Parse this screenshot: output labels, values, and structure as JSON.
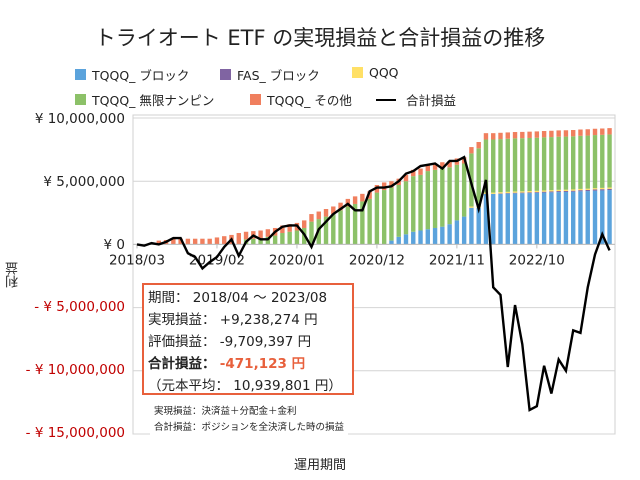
{
  "chart_data": {
    "type": "bar",
    "stacked": true,
    "title": "トライオート ETF の実現損益と合計損益の推移",
    "xlabel": "運用期間",
    "ylabel": "利益",
    "ylim": [
      -15000000,
      10000000
    ],
    "unit": 1000000,
    "y_ticks": [
      10000000,
      5000000,
      0,
      -5000000,
      -10000000,
      -15000000
    ],
    "y_tick_labels": [
      "¥ 10,000,000",
      "¥ 5,000,000",
      "¥ 0",
      "- ¥ 5,000,000",
      "- ¥ 10,000,000",
      "- ¥ 15,000,000"
    ],
    "x_tick_labels": [
      "2018/03",
      "2019/02",
      "2020/01",
      "2020/12",
      "2021/11",
      "2022/10"
    ],
    "grid": true,
    "legend_position": "top",
    "categories": [
      "2018/03",
      "2018/04",
      "2018/05",
      "2018/06",
      "2018/07",
      "2018/08",
      "2018/09",
      "2018/10",
      "2018/11",
      "2018/12",
      "2019/01",
      "2019/02",
      "2019/03",
      "2019/04",
      "2019/05",
      "2019/06",
      "2019/07",
      "2019/08",
      "2019/09",
      "2019/10",
      "2019/11",
      "2019/12",
      "2020/01",
      "2020/02",
      "2020/03",
      "2020/04",
      "2020/05",
      "2020/06",
      "2020/07",
      "2020/08",
      "2020/09",
      "2020/10",
      "2020/11",
      "2020/12",
      "2021/01",
      "2021/02",
      "2021/03",
      "2021/04",
      "2021/05",
      "2021/06",
      "2021/07",
      "2021/08",
      "2021/09",
      "2021/10",
      "2021/11",
      "2021/12",
      "2022/01",
      "2022/02",
      "2022/03",
      "2022/04",
      "2022/05",
      "2022/06",
      "2022/07",
      "2022/08",
      "2022/09",
      "2022/10",
      "2022/11",
      "2022/12",
      "2023/01",
      "2023/02",
      "2023/03",
      "2023/04",
      "2023/05",
      "2023/06",
      "2023/07",
      "2023/08"
    ],
    "series": [
      {
        "name": "TQQQ_ ブロック",
        "type": "bar",
        "color": "#5ba3dc",
        "values": [
          0,
          0,
          0,
          0,
          0,
          0,
          0,
          0,
          0,
          0,
          0,
          0,
          0,
          0,
          0,
          0,
          0,
          0,
          0,
          0,
          0,
          0,
          0,
          0,
          0,
          0,
          0,
          0,
          0,
          0,
          0,
          0,
          0,
          0,
          0,
          0.3,
          0.6,
          0.8,
          1.0,
          1.1,
          1.2,
          1.3,
          1.4,
          1.6,
          1.9,
          2.2,
          2.9,
          2.9,
          4.0,
          4.0,
          4.0,
          4.02,
          4.04,
          4.05,
          4.06,
          4.08,
          4.1,
          4.12,
          4.14,
          4.15,
          4.17,
          4.2,
          4.22,
          4.25,
          4.27,
          4.3
        ]
      },
      {
        "name": "FAS_ ブロック",
        "type": "bar",
        "color": "#8064a2",
        "values": [
          0,
          0,
          0,
          0,
          0,
          0,
          0,
          0,
          0,
          0,
          0,
          0,
          0,
          0,
          0,
          0,
          0,
          0,
          0,
          0,
          0,
          0,
          0,
          0,
          0,
          0,
          0,
          0,
          0,
          0,
          0,
          0,
          0,
          0,
          0,
          0,
          0,
          0,
          0,
          0,
          0,
          0,
          0,
          0,
          0,
          0,
          0,
          0,
          0,
          0,
          0.03,
          0.04,
          0.05,
          0.05,
          0.06,
          0.06,
          0.07,
          0.07,
          0.08,
          0.08,
          0.08,
          0.09,
          0.09,
          0.1,
          0.1,
          0.1
        ]
      },
      {
        "name": "QQQ",
        "type": "bar",
        "color": "#ffe066",
        "values": [
          0,
          0,
          0,
          0,
          0,
          0,
          0,
          0,
          0,
          0,
          0,
          0,
          0,
          0,
          0,
          0,
          0,
          0,
          0,
          0,
          0,
          0,
          0,
          0,
          0,
          0,
          0,
          0,
          0,
          0,
          0,
          0,
          0,
          0,
          0,
          0,
          0,
          0,
          0,
          0,
          0,
          0,
          0,
          0,
          0,
          0,
          0.1,
          0.1,
          0.1,
          0.1,
          0.1,
          0.1,
          0.1,
          0.1,
          0.1,
          0.1,
          0.1,
          0.1,
          0.1,
          0.1,
          0.1,
          0.1,
          0.1,
          0.1,
          0.1,
          0.1
        ]
      },
      {
        "name": "TQQQ_ 無限ナンピン",
        "type": "bar",
        "color": "#8cc168",
        "values": [
          0,
          0,
          0,
          0,
          0,
          0,
          0,
          0,
          0,
          0,
          0,
          0,
          0,
          0,
          0,
          0.4,
          0.45,
          0.5,
          0.6,
          0.7,
          0.9,
          1.0,
          1.1,
          1.3,
          1.8,
          2.0,
          2.2,
          2.4,
          2.7,
          3.0,
          3.2,
          3.4,
          3.6,
          4.1,
          4.3,
          4.2,
          4.1,
          4.2,
          4.4,
          4.4,
          4.6,
          4.6,
          4.6,
          4.5,
          4.4,
          4.2,
          4.2,
          4.6,
          4.2,
          4.2,
          4.2,
          4.2,
          4.2,
          4.2,
          4.2,
          4.2,
          4.2,
          4.2,
          4.2,
          4.2,
          4.2,
          4.2,
          4.2,
          4.2,
          4.2,
          4.2
        ]
      },
      {
        "name": "TQQQ_ その他",
        "type": "bar",
        "color": "#f07f5e",
        "values": [
          0,
          0,
          0,
          0.3,
          0.35,
          0.45,
          0.45,
          0.45,
          0.45,
          0.45,
          0.45,
          0.55,
          0.65,
          0.75,
          0.9,
          0.6,
          0.6,
          0.6,
          0.6,
          0.6,
          0.6,
          0.6,
          0.6,
          0.6,
          0.6,
          0.6,
          0.6,
          0.6,
          0.6,
          0.6,
          0.6,
          0.6,
          0.6,
          0.6,
          0.6,
          0.5,
          0.5,
          0.5,
          0.5,
          0.5,
          0.5,
          0.5,
          0.5,
          0.5,
          0.5,
          0.5,
          0.5,
          0.5,
          0.5,
          0.5,
          0.5,
          0.5,
          0.5,
          0.5,
          0.5,
          0.5,
          0.5,
          0.5,
          0.5,
          0.5,
          0.5,
          0.5,
          0.5,
          0.5,
          0.5,
          0.5
        ]
      },
      {
        "name": "合計損益",
        "type": "line",
        "color": "#000000",
        "values": [
          0,
          -0.1,
          0.1,
          0,
          0.2,
          0.5,
          0.5,
          -0.7,
          -1.0,
          -1.9,
          -1.4,
          -1.0,
          -0.2,
          0.4,
          -0.9,
          0.2,
          0.7,
          0.4,
          0.4,
          1.0,
          1.4,
          1.5,
          1.5,
          0.8,
          -0.2,
          1.2,
          1.8,
          2.4,
          2.8,
          3.2,
          2.7,
          2.7,
          4.2,
          4.5,
          4.5,
          4.6,
          5.0,
          5.6,
          5.8,
          6.2,
          6.3,
          6.4,
          6.0,
          6.6,
          6.6,
          6.9,
          4.8,
          2.8,
          5.1,
          -3.4,
          -4.0,
          -9.7,
          -4.8,
          -7.9,
          -13.1,
          -12.8,
          -9.6,
          -11.8,
          -9.1,
          -10.0,
          -6.8,
          -7.0,
          -3.4,
          -0.8,
          0.8,
          -0.47
        ]
      }
    ]
  },
  "info_box": {
    "period": "期間： 2018/04 ～ 2023/08",
    "realized": "実現損益： +9,238,274 円",
    "unrealized": "評価損益： -9,709,397 円",
    "total_label": "合計損益：",
    "total_value": "-471,123 円",
    "principal": "（元本平均： 10,939,801 円）"
  },
  "notes": {
    "line1": "実現損益：決済益＋分配金＋金利",
    "line2": "合計損益：ポジションを全決済した時の損益"
  }
}
